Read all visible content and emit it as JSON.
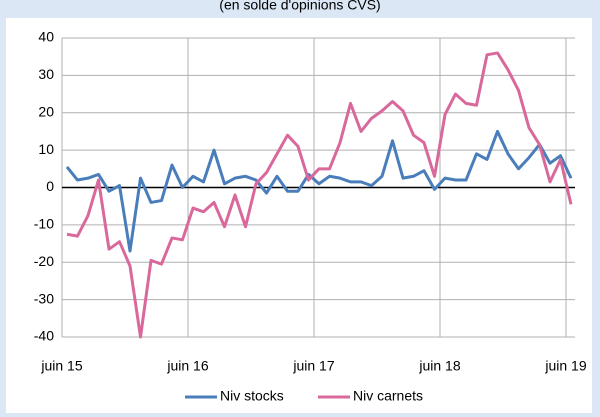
{
  "chart_data": {
    "type": "line",
    "subtitle": "(en solde d'opinions CVS)",
    "categories": [
      "juin 15",
      null,
      null,
      null,
      null,
      null,
      null,
      null,
      null,
      null,
      null,
      null,
      "juin 16",
      null,
      null,
      null,
      null,
      null,
      null,
      null,
      null,
      null,
      null,
      null,
      "juin 17",
      null,
      null,
      null,
      null,
      null,
      null,
      null,
      null,
      null,
      null,
      null,
      "juin 18",
      null,
      null,
      null,
      null,
      null,
      null,
      null,
      null,
      null,
      null,
      null,
      "juin 19"
    ],
    "series": [
      {
        "name": "Niv stocks",
        "color": "#4a7ebb",
        "values": [
          5.5,
          2,
          2.5,
          3.5,
          -1,
          0.5,
          -17,
          2.5,
          -4,
          -3.5,
          6,
          0,
          3,
          1.5,
          10,
          1,
          2.5,
          3,
          2,
          -1.5,
          3,
          -1,
          -1,
          3.5,
          1,
          3,
          2.5,
          1.5,
          1.5,
          0.5,
          3,
          12.5,
          2.5,
          3,
          4.5,
          -0.5,
          2.5,
          2,
          2,
          9,
          7.5,
          15,
          9,
          5,
          8,
          11.5,
          6.5,
          8.5,
          2.5
        ]
      },
      {
        "name": "Niv carnets",
        "color": "#d9699c",
        "values": [
          -12.5,
          -13,
          -7.5,
          2,
          -16.5,
          -14.5,
          -21,
          -40,
          -19.5,
          -20.5,
          -13.5,
          -14,
          -5.5,
          -6.5,
          -4,
          -10.5,
          -2,
          -10.5,
          1,
          4,
          9,
          14,
          11,
          2,
          5,
          5,
          12,
          22.5,
          15,
          18.5,
          20.5,
          23,
          20.5,
          14,
          12,
          3,
          19.5,
          25,
          22.5,
          22,
          35.5,
          36,
          31.5,
          26,
          16,
          11.5,
          1.5,
          7.5,
          -4.5
        ]
      }
    ],
    "ylim": [
      -40,
      40
    ],
    "yticks": [
      -40,
      -30,
      -20,
      -10,
      0,
      10,
      20,
      30,
      40
    ],
    "grid": true
  }
}
